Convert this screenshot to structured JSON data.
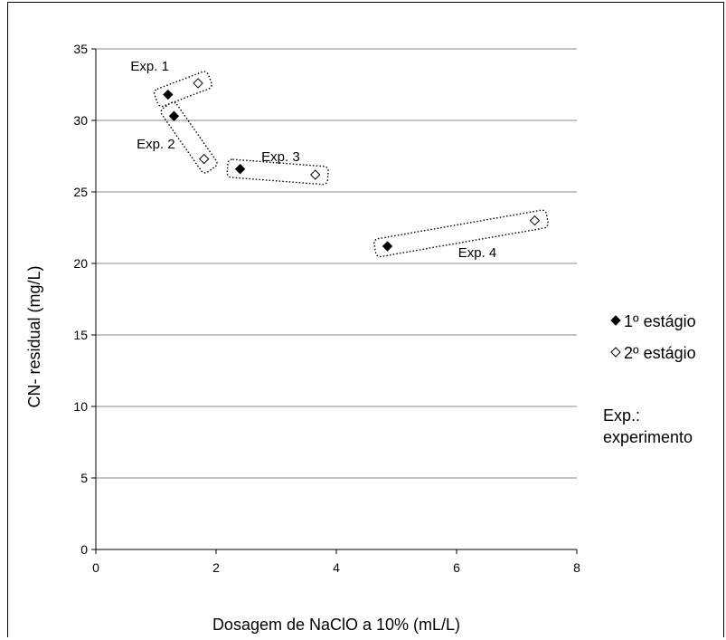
{
  "chart_data": {
    "type": "scatter",
    "xlabel": "Dosagem de NaClO a 10% (mL/L)",
    "ylabel": "CN- residual  (mg/L)",
    "xlim": [
      0,
      8
    ],
    "ylim": [
      0,
      35
    ],
    "x_ticks": [
      "0",
      "2",
      "4",
      "6",
      "8"
    ],
    "y_ticks": [
      "0",
      "5",
      "10",
      "15",
      "20",
      "25",
      "30",
      "35"
    ],
    "grid": "horizontal",
    "legend_position": "right",
    "series": [
      {
        "name": "1º estágio",
        "marker": "filled-diamond",
        "color": "#000000",
        "points": [
          [
            1.2,
            31.8
          ],
          [
            1.3,
            30.3
          ],
          [
            2.4,
            26.6
          ],
          [
            4.85,
            21.2
          ]
        ]
      },
      {
        "name": "2º estágio",
        "marker": "open-diamond",
        "color": "#000000",
        "points": [
          [
            1.7,
            32.6
          ],
          [
            1.8,
            27.3
          ],
          [
            3.65,
            26.2
          ],
          [
            7.3,
            23.0
          ]
        ]
      }
    ],
    "annotations": [
      {
        "label": "Exp. 1",
        "group": [
          [
            1.2,
            31.8
          ],
          [
            1.7,
            32.6
          ]
        ]
      },
      {
        "label": "Exp. 2",
        "group": [
          [
            1.3,
            30.3
          ],
          [
            1.8,
            27.3
          ]
        ]
      },
      {
        "label": "Exp. 3",
        "group": [
          [
            2.4,
            26.6
          ],
          [
            3.65,
            26.2
          ]
        ]
      },
      {
        "label": "Exp. 4",
        "group": [
          [
            4.85,
            21.2
          ],
          [
            7.3,
            23.0
          ]
        ]
      }
    ],
    "note": {
      "line1": "Exp.:",
      "line2": "experimento"
    }
  }
}
